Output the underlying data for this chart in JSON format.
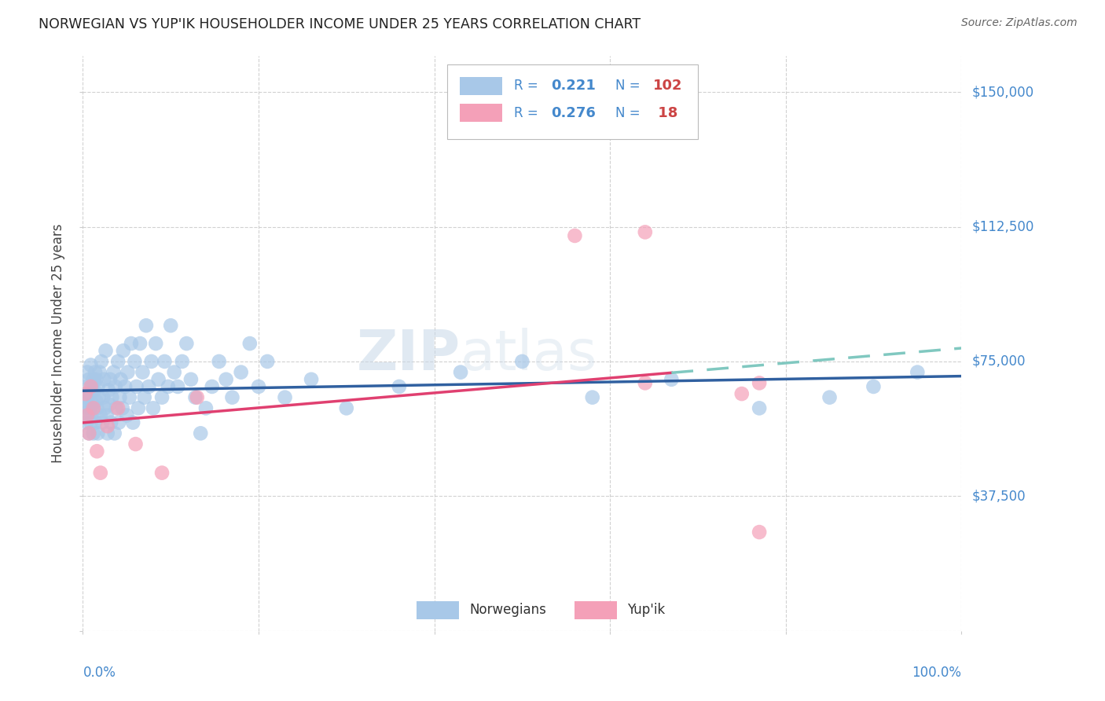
{
  "title": "NORWEGIAN VS YUP'IK HOUSEHOLDER INCOME UNDER 25 YEARS CORRELATION CHART",
  "source": "Source: ZipAtlas.com",
  "ylabel": "Householder Income Under 25 years",
  "yticks": [
    0,
    37500,
    75000,
    112500,
    150000
  ],
  "ytick_labels": [
    "",
    "$37,500",
    "$75,000",
    "$112,500",
    "$150,000"
  ],
  "xlim": [
    0,
    1.0
  ],
  "ylim": [
    0,
    160000
  ],
  "norwegian_color": "#a8c8e8",
  "yupik_color": "#f4a0b8",
  "trend_blue": "#3060a0",
  "trend_pink": "#e04070",
  "trend_teal": "#80c8c0",
  "R_norwegian": 0.221,
  "N_norwegian": 102,
  "R_yupik": 0.276,
  "N_yupik": 18,
  "norwegian_x": [
    0.002,
    0.003,
    0.004,
    0.004,
    0.005,
    0.005,
    0.006,
    0.007,
    0.007,
    0.008,
    0.008,
    0.009,
    0.009,
    0.01,
    0.01,
    0.011,
    0.012,
    0.012,
    0.013,
    0.014,
    0.014,
    0.015,
    0.015,
    0.016,
    0.017,
    0.017,
    0.018,
    0.019,
    0.02,
    0.021,
    0.022,
    0.023,
    0.024,
    0.025,
    0.026,
    0.027,
    0.028,
    0.029,
    0.03,
    0.031,
    0.032,
    0.033,
    0.035,
    0.036,
    0.037,
    0.038,
    0.04,
    0.041,
    0.042,
    0.043,
    0.045,
    0.046,
    0.048,
    0.05,
    0.051,
    0.053,
    0.055,
    0.057,
    0.059,
    0.061,
    0.063,
    0.065,
    0.068,
    0.07,
    0.072,
    0.075,
    0.078,
    0.08,
    0.083,
    0.086,
    0.09,
    0.093,
    0.097,
    0.1,
    0.104,
    0.108,
    0.113,
    0.118,
    0.123,
    0.128,
    0.134,
    0.14,
    0.147,
    0.155,
    0.163,
    0.17,
    0.18,
    0.19,
    0.2,
    0.21,
    0.23,
    0.26,
    0.3,
    0.36,
    0.43,
    0.5,
    0.58,
    0.67,
    0.77,
    0.85,
    0.9,
    0.95
  ],
  "norwegian_y": [
    62000,
    64000,
    58000,
    68000,
    60000,
    72000,
    65000,
    55000,
    70000,
    62000,
    66000,
    58000,
    74000,
    60000,
    68000,
    63000,
    70000,
    55000,
    67000,
    72000,
    58000,
    64000,
    70000,
    62000,
    55000,
    68000,
    65000,
    72000,
    60000,
    75000,
    58000,
    65000,
    70000,
    62000,
    78000,
    60000,
    55000,
    67000,
    63000,
    70000,
    58000,
    65000,
    72000,
    55000,
    68000,
    62000,
    75000,
    58000,
    65000,
    70000,
    62000,
    78000,
    68000,
    60000,
    72000,
    65000,
    80000,
    58000,
    75000,
    68000,
    62000,
    80000,
    72000,
    65000,
    85000,
    68000,
    75000,
    62000,
    80000,
    70000,
    65000,
    75000,
    68000,
    85000,
    72000,
    68000,
    75000,
    80000,
    70000,
    65000,
    55000,
    62000,
    68000,
    75000,
    70000,
    65000,
    72000,
    80000,
    68000,
    75000,
    65000,
    70000,
    62000,
    68000,
    72000,
    75000,
    65000,
    70000,
    62000,
    65000,
    68000,
    72000
  ],
  "yupik_x": [
    0.003,
    0.005,
    0.007,
    0.009,
    0.012,
    0.016,
    0.02,
    0.028,
    0.04,
    0.06,
    0.09,
    0.13,
    0.56,
    0.64,
    0.64,
    0.77,
    0.77,
    0.75
  ],
  "yupik_y": [
    66000,
    60000,
    55000,
    68000,
    62000,
    50000,
    44000,
    57000,
    62000,
    52000,
    44000,
    65000,
    110000,
    69000,
    111000,
    27500,
    69000,
    66000
  ],
  "watermark_zip": "ZIP",
  "watermark_atlas": "atlas"
}
